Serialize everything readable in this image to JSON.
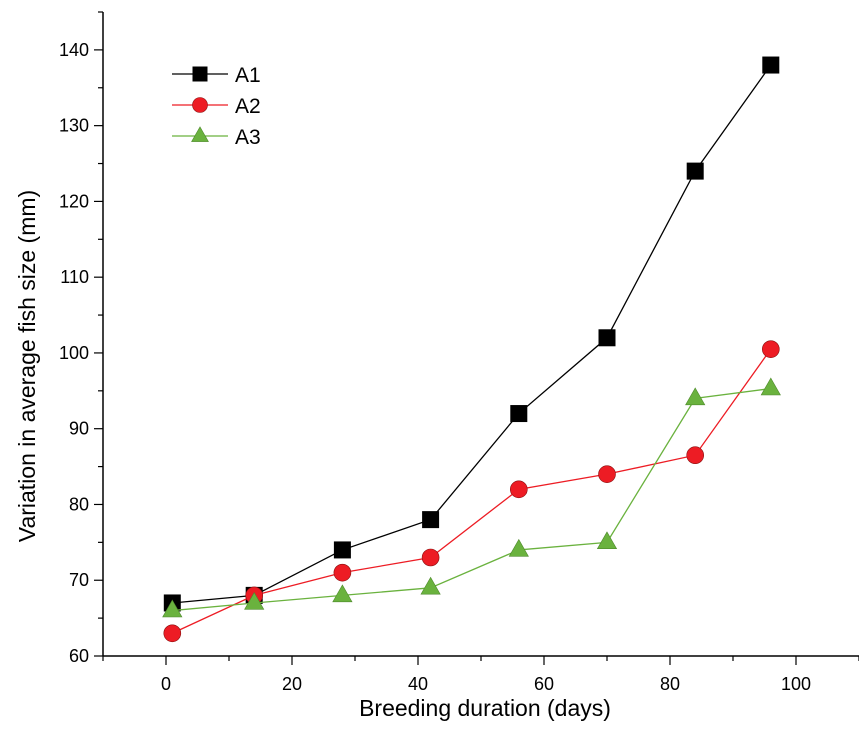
{
  "chart_data": {
    "type": "line",
    "xlabel": "Breeding duration (days)",
    "ylabel": "Variation in average fish size (mm)",
    "xlim": [
      -10,
      110
    ],
    "ylim": [
      60,
      145
    ],
    "x_ticks": [
      0,
      20,
      40,
      60,
      80,
      100
    ],
    "y_ticks": [
      60,
      70,
      80,
      90,
      100,
      110,
      120,
      130,
      140
    ],
    "grid": false,
    "legend": "top-left",
    "x": [
      1,
      14,
      28,
      42,
      56,
      70,
      84,
      96
    ],
    "series": [
      {
        "name": "A1",
        "color": "#000000",
        "marker": "square",
        "values": [
          67,
          68,
          74,
          78,
          92,
          102,
          124,
          138
        ]
      },
      {
        "name": "A2",
        "color": "#ed1c24",
        "marker": "circle",
        "values": [
          63,
          68,
          71,
          73,
          82,
          84,
          86.5,
          100.5
        ]
      },
      {
        "name": "A3",
        "color": "#6ab23e",
        "marker": "triangle",
        "values": [
          66,
          67,
          68,
          69,
          74,
          75,
          94,
          95.3
        ]
      }
    ]
  }
}
